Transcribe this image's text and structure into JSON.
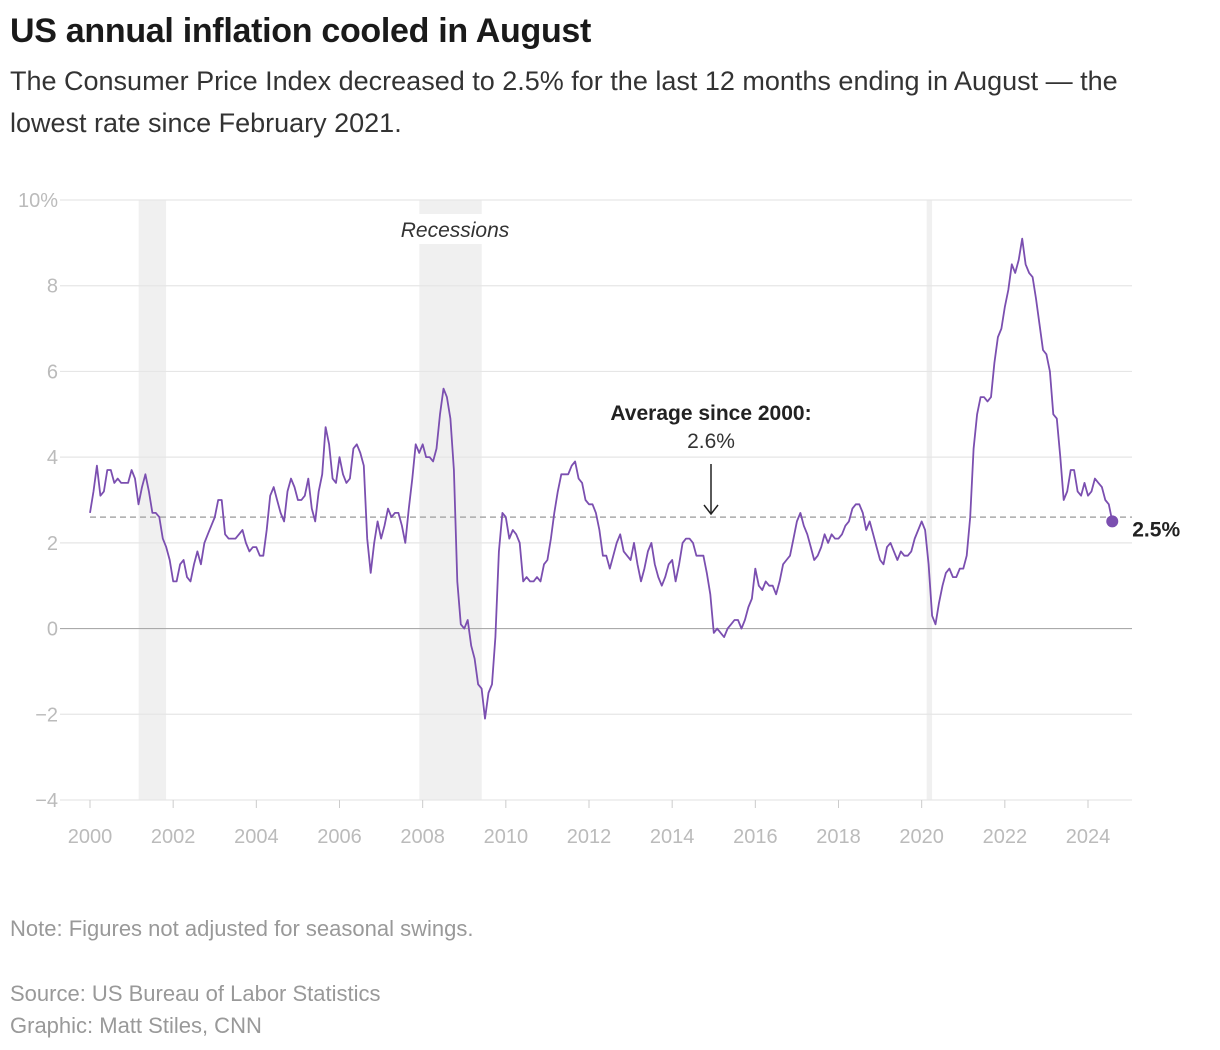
{
  "title": "US annual inflation cooled in August",
  "subtitle": "The Consumer Price Index decreased to 2.5% for the last 12 months ending in August — the lowest rate since February 2021.",
  "note": "Note: Figures not adjusted for seasonal swings.",
  "source": "Source: US Bureau of Labor Statistics",
  "credit": "Graphic: Matt Stiles, CNN",
  "colors": {
    "line": "#7b4fb0",
    "recession": "#f0f0f0",
    "grid": "#e6e6e6",
    "average": "#aaaaaa"
  },
  "chart_data": {
    "type": "line",
    "title": "",
    "xlabel": "",
    "ylabel": "",
    "xlim": [
      2000,
      2024.67
    ],
    "ylim": [
      -4,
      10
    ],
    "grid": true,
    "y_ticks": [
      {
        "v": 10,
        "label": "10%"
      },
      {
        "v": 8,
        "label": "8"
      },
      {
        "v": 6,
        "label": "6"
      },
      {
        "v": 4,
        "label": "4"
      },
      {
        "v": 2,
        "label": "2"
      },
      {
        "v": 0,
        "label": "0"
      },
      {
        "v": -2,
        "label": "−2"
      },
      {
        "v": -4,
        "label": "−4"
      }
    ],
    "x_ticks": [
      "2000",
      "2002",
      "2004",
      "2006",
      "2008",
      "2010",
      "2012",
      "2014",
      "2016",
      "2018",
      "2020",
      "2022",
      "2024"
    ],
    "start": "2000-01",
    "frequency": "monthly",
    "values": [
      2.7,
      3.2,
      3.8,
      3.1,
      3.2,
      3.7,
      3.7,
      3.4,
      3.5,
      3.4,
      3.4,
      3.4,
      3.7,
      3.5,
      2.9,
      3.3,
      3.6,
      3.2,
      2.7,
      2.7,
      2.6,
      2.1,
      1.9,
      1.6,
      1.1,
      1.1,
      1.5,
      1.6,
      1.2,
      1.1,
      1.5,
      1.8,
      1.5,
      2.0,
      2.2,
      2.4,
      2.6,
      3.0,
      3.0,
      2.2,
      2.1,
      2.1,
      2.1,
      2.2,
      2.3,
      2.0,
      1.8,
      1.9,
      1.9,
      1.7,
      1.7,
      2.3,
      3.1,
      3.3,
      3.0,
      2.7,
      2.5,
      3.2,
      3.5,
      3.3,
      3.0,
      3.0,
      3.1,
      3.5,
      2.8,
      2.5,
      3.2,
      3.6,
      4.7,
      4.3,
      3.5,
      3.4,
      4.0,
      3.6,
      3.4,
      3.5,
      4.2,
      4.3,
      4.1,
      3.8,
      2.1,
      1.3,
      2.0,
      2.5,
      2.1,
      2.4,
      2.8,
      2.6,
      2.7,
      2.7,
      2.4,
      2.0,
      2.8,
      3.5,
      4.3,
      4.1,
      4.3,
      4.0,
      4.0,
      3.9,
      4.2,
      5.0,
      5.6,
      5.4,
      4.9,
      3.7,
      1.1,
      0.1,
      0.0,
      0.2,
      -0.4,
      -0.7,
      -1.3,
      -1.4,
      -2.1,
      -1.5,
      -1.3,
      -0.2,
      1.8,
      2.7,
      2.6,
      2.1,
      2.3,
      2.2,
      2.0,
      1.1,
      1.2,
      1.1,
      1.1,
      1.2,
      1.1,
      1.5,
      1.6,
      2.1,
      2.7,
      3.2,
      3.6,
      3.6,
      3.6,
      3.8,
      3.9,
      3.5,
      3.4,
      3.0,
      2.9,
      2.9,
      2.7,
      2.3,
      1.7,
      1.7,
      1.4,
      1.7,
      2.0,
      2.2,
      1.8,
      1.7,
      1.6,
      2.0,
      1.5,
      1.1,
      1.4,
      1.8,
      2.0,
      1.5,
      1.2,
      1.0,
      1.2,
      1.5,
      1.6,
      1.1,
      1.5,
      2.0,
      2.1,
      2.1,
      2.0,
      1.7,
      1.7,
      1.7,
      1.3,
      0.8,
      -0.1,
      0.0,
      -0.1,
      -0.2,
      0.0,
      0.1,
      0.2,
      0.2,
      0.0,
      0.2,
      0.5,
      0.7,
      1.4,
      1.0,
      0.9,
      1.1,
      1.0,
      1.0,
      0.8,
      1.1,
      1.5,
      1.6,
      1.7,
      2.1,
      2.5,
      2.7,
      2.4,
      2.2,
      1.9,
      1.6,
      1.7,
      1.9,
      2.2,
      2.0,
      2.2,
      2.1,
      2.1,
      2.2,
      2.4,
      2.5,
      2.8,
      2.9,
      2.9,
      2.7,
      2.3,
      2.5,
      2.2,
      1.9,
      1.6,
      1.5,
      1.9,
      2.0,
      1.8,
      1.6,
      1.8,
      1.7,
      1.7,
      1.8,
      2.1,
      2.3,
      2.5,
      2.3,
      1.5,
      0.3,
      0.1,
      0.6,
      1.0,
      1.3,
      1.4,
      1.2,
      1.2,
      1.4,
      1.4,
      1.7,
      2.6,
      4.2,
      5.0,
      5.4,
      5.4,
      5.3,
      5.4,
      6.2,
      6.8,
      7.0,
      7.5,
      7.9,
      8.5,
      8.3,
      8.6,
      9.1,
      8.5,
      8.3,
      8.2,
      7.7,
      7.1,
      6.5,
      6.4,
      6.0,
      5.0,
      4.9,
      4.0,
      3.0,
      3.2,
      3.7,
      3.7,
      3.2,
      3.1,
      3.4,
      3.1,
      3.2,
      3.5,
      3.4,
      3.3,
      3.0,
      2.9,
      2.5
    ],
    "recessions": [
      {
        "start": 2001.17,
        "end": 2001.83
      },
      {
        "start": 2007.92,
        "end": 2009.42
      },
      {
        "start": 2020.12,
        "end": 2020.25
      }
    ],
    "recession_label": "Recessions",
    "average": {
      "value": 2.6,
      "label": "Average since 2000:",
      "value_label": "2.6%"
    },
    "last_point": {
      "value": 2.5,
      "label": "2.5%"
    }
  }
}
